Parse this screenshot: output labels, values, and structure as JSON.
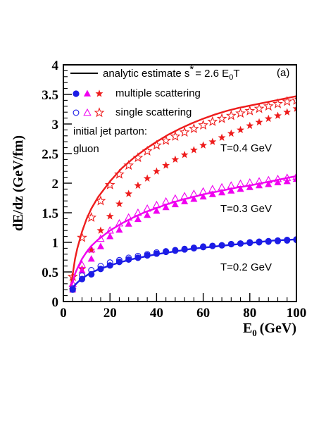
{
  "chart_data": {
    "type": "line",
    "xlabel": "E",
    "xlabel_sub": "0",
    "xlabel_unit": "(GeV)",
    "ylabel": "dE/dz (GeV/fm)",
    "xlim": [
      0,
      100
    ],
    "ylim": [
      0,
      4
    ],
    "x_ticks": [
      0,
      20,
      40,
      60,
      80,
      100
    ],
    "x_tick_labels": [
      "0",
      "20",
      "40",
      "60",
      "80",
      "100"
    ],
    "y_ticks": [
      0,
      0.5,
      1,
      1.5,
      2,
      2.5,
      3,
      3.5,
      4
    ],
    "y_tick_labels": [
      "0",
      "0.5",
      "1",
      "1.5",
      "2",
      "2.5",
      "3",
      "3.5",
      "4"
    ],
    "grid": false,
    "panel_label": "(a)",
    "legend": {
      "placement": "top-left",
      "analytic_text": "analytic estimate s",
      "analytic_star": "*",
      "analytic_eq": "= 2.6 E",
      "analytic_sub": "0",
      "analytic_tail": "T",
      "multiple_label": "multiple scattering",
      "single_label": "single scattering"
    },
    "annotations": {
      "jet_line1": "initial jet parton:",
      "jet_line2": "gluon",
      "t_high": "T=0.4 GeV",
      "t_mid": "T=0.3 GeV",
      "t_low": "T=0.2 GeV"
    },
    "colors": {
      "t_high": "#ee1c1c",
      "t_mid": "#f000f0",
      "t_low": "#1c1ce6"
    },
    "series": [
      {
        "key": "t_high",
        "marker": "star",
        "analytic": {
          "x": [
            3,
            4,
            5,
            6,
            8,
            10,
            12,
            15,
            20,
            25,
            30,
            35,
            40,
            45,
            50,
            55,
            60,
            65,
            70,
            75,
            80,
            85,
            90,
            95,
            100
          ],
          "y": [
            0.2,
            0.46,
            0.72,
            0.9,
            1.18,
            1.4,
            1.57,
            1.77,
            2.03,
            2.25,
            2.42,
            2.57,
            2.7,
            2.82,
            2.92,
            3.01,
            3.09,
            3.16,
            3.22,
            3.27,
            3.31,
            3.35,
            3.39,
            3.43,
            3.47
          ]
        },
        "multiple": {
          "x": [
            4,
            8,
            12,
            16,
            20,
            24,
            28,
            32,
            36,
            40,
            44,
            48,
            52,
            56,
            60,
            64,
            68,
            72,
            76,
            80,
            84,
            88,
            92,
            96,
            100
          ],
          "y": [
            0.2,
            0.55,
            0.87,
            1.2,
            1.44,
            1.65,
            1.82,
            1.96,
            2.08,
            2.2,
            2.3,
            2.4,
            2.48,
            2.56,
            2.64,
            2.7,
            2.77,
            2.84,
            2.9,
            2.97,
            3.03,
            3.09,
            3.14,
            3.2,
            3.26
          ]
        },
        "single": {
          "x": [
            4,
            8,
            12,
            16,
            20,
            24,
            28,
            32,
            36,
            40,
            44,
            48,
            52,
            56,
            60,
            64,
            68,
            72,
            76,
            80,
            84,
            88,
            92,
            96,
            100
          ],
          "y": [
            0.42,
            1.08,
            1.42,
            1.7,
            1.97,
            2.15,
            2.3,
            2.43,
            2.54,
            2.64,
            2.72,
            2.79,
            2.86,
            2.92,
            2.98,
            3.04,
            3.09,
            3.14,
            3.18,
            3.22,
            3.26,
            3.3,
            3.34,
            3.38,
            3.4
          ]
        }
      },
      {
        "key": "t_mid",
        "marker": "triangle",
        "analytic": {
          "x": [
            3,
            4,
            5,
            6,
            8,
            10,
            12,
            15,
            20,
            25,
            30,
            35,
            40,
            45,
            50,
            55,
            60,
            65,
            70,
            75,
            80,
            85,
            90,
            95,
            100
          ],
          "y": [
            0.2,
            0.33,
            0.47,
            0.56,
            0.72,
            0.84,
            0.94,
            1.05,
            1.2,
            1.32,
            1.42,
            1.51,
            1.58,
            1.65,
            1.71,
            1.76,
            1.81,
            1.85,
            1.89,
            1.93,
            1.96,
            2.0,
            2.04,
            2.08,
            2.12
          ]
        },
        "multiple": {
          "x": [
            4,
            8,
            12,
            16,
            20,
            24,
            28,
            32,
            36,
            40,
            44,
            48,
            52,
            56,
            60,
            64,
            68,
            72,
            76,
            80,
            84,
            88,
            92,
            96,
            100
          ],
          "y": [
            0.2,
            0.52,
            0.72,
            0.93,
            1.1,
            1.21,
            1.31,
            1.39,
            1.46,
            1.53,
            1.59,
            1.64,
            1.69,
            1.73,
            1.77,
            1.81,
            1.84,
            1.87,
            1.9,
            1.93,
            1.96,
            1.98,
            2.01,
            2.03,
            2.07
          ]
        },
        "single": {
          "x": [
            4,
            8,
            12,
            16,
            20,
            24,
            28,
            32,
            36,
            40,
            44,
            48,
            52,
            56,
            60,
            64,
            68,
            72,
            76,
            80,
            84,
            88,
            92,
            96,
            100
          ],
          "y": [
            0.3,
            0.62,
            0.88,
            1.06,
            1.2,
            1.32,
            1.42,
            1.5,
            1.57,
            1.63,
            1.69,
            1.74,
            1.78,
            1.82,
            1.86,
            1.9,
            1.93,
            1.96,
            1.99,
            2.01,
            2.03,
            2.05,
            2.07,
            2.09,
            2.11
          ]
        }
      },
      {
        "key": "t_low",
        "marker": "circle",
        "analytic": {
          "x": [
            3,
            4,
            5,
            6,
            8,
            10,
            12,
            15,
            20,
            25,
            30,
            35,
            40,
            45,
            50,
            55,
            60,
            65,
            70,
            75,
            80,
            85,
            90,
            95,
            100
          ],
          "y": [
            0.2,
            0.24,
            0.28,
            0.32,
            0.39,
            0.44,
            0.49,
            0.54,
            0.61,
            0.67,
            0.72,
            0.76,
            0.8,
            0.83,
            0.86,
            0.89,
            0.91,
            0.93,
            0.95,
            0.97,
            0.99,
            1.01,
            1.03,
            1.04,
            1.05
          ]
        },
        "multiple": {
          "x": [
            4,
            8,
            12,
            16,
            20,
            24,
            28,
            32,
            36,
            40,
            44,
            48,
            52,
            56,
            60,
            64,
            68,
            72,
            76,
            80,
            84,
            88,
            92,
            96,
            100
          ],
          "y": [
            0.2,
            0.38,
            0.46,
            0.55,
            0.61,
            0.67,
            0.71,
            0.74,
            0.78,
            0.81,
            0.84,
            0.86,
            0.88,
            0.9,
            0.92,
            0.94,
            0.95,
            0.97,
            0.98,
            1.0,
            1.01,
            1.02,
            1.03,
            1.04,
            1.05
          ]
        },
        "single": {
          "x": [
            4,
            8,
            12,
            16,
            20,
            24,
            28,
            32,
            36,
            40,
            44,
            48,
            52,
            56,
            60,
            64,
            68,
            72,
            76,
            80,
            84,
            88,
            92,
            96,
            100
          ],
          "y": [
            0.22,
            0.44,
            0.53,
            0.6,
            0.66,
            0.7,
            0.74,
            0.77,
            0.8,
            0.83,
            0.85,
            0.87,
            0.89,
            0.91,
            0.93,
            0.94,
            0.95,
            0.97,
            0.98,
            0.99,
            1.0,
            1.01,
            1.02,
            1.03,
            1.04
          ]
        }
      }
    ]
  }
}
